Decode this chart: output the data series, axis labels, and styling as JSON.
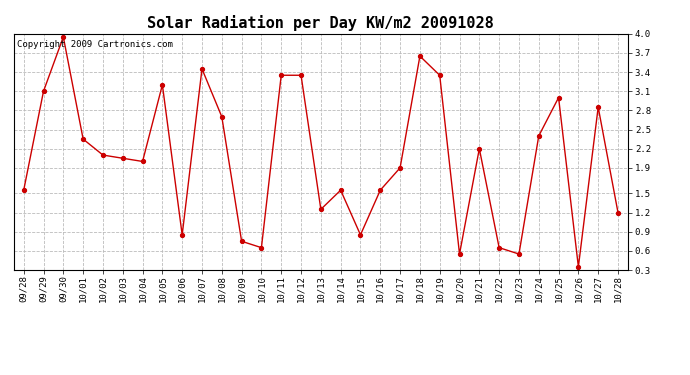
{
  "title": "Solar Radiation per Day KW/m2 20091028",
  "copyright": "Copyright 2009 Cartronics.com",
  "dates": [
    "09/28",
    "09/29",
    "09/30",
    "10/01",
    "10/02",
    "10/03",
    "10/04",
    "10/05",
    "10/06",
    "10/07",
    "10/08",
    "10/09",
    "10/10",
    "10/11",
    "10/12",
    "10/13",
    "10/14",
    "10/15",
    "10/16",
    "10/17",
    "10/18",
    "10/19",
    "10/20",
    "10/21",
    "10/22",
    "10/23",
    "10/24",
    "10/25",
    "10/26",
    "10/27",
    "10/28"
  ],
  "values": [
    1.55,
    3.1,
    3.95,
    2.35,
    2.1,
    2.05,
    2.0,
    3.2,
    0.85,
    3.45,
    2.7,
    0.75,
    0.65,
    3.35,
    3.35,
    1.25,
    1.55,
    0.85,
    1.55,
    1.9,
    3.65,
    3.35,
    0.55,
    2.2,
    0.65,
    0.55,
    2.4,
    3.0,
    0.35,
    2.85,
    1.2
  ],
  "line_color": "#cc0000",
  "marker": "o",
  "marker_size": 3,
  "marker_color": "#cc0000",
  "ylim": [
    0.3,
    4.0
  ],
  "yticks": [
    0.3,
    0.6,
    0.9,
    1.2,
    1.5,
    1.9,
    2.2,
    2.5,
    2.8,
    3.1,
    3.4,
    3.7,
    4.0
  ],
  "grid_color": "#bbbbbb",
  "grid_style": "--",
  "bg_color": "#ffffff",
  "title_fontsize": 11,
  "tick_fontsize": 6.5,
  "copyright_fontsize": 6.5
}
